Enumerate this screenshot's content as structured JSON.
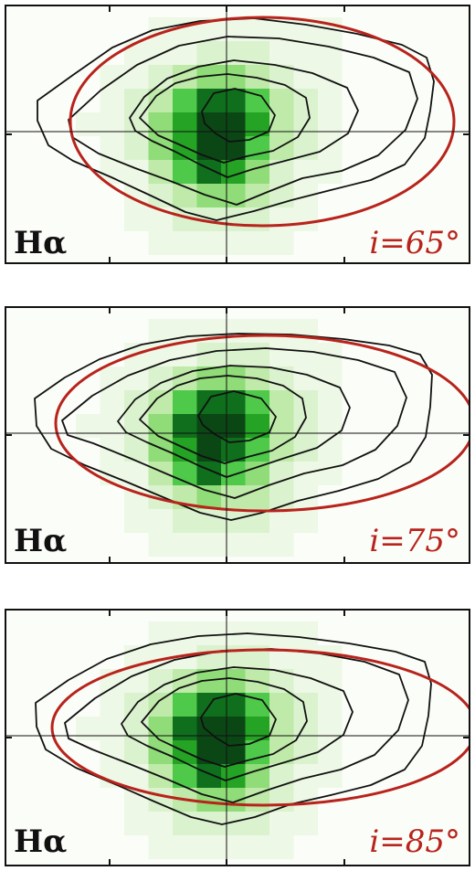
{
  "figure": {
    "panels": [
      {
        "line_label": "Hα",
        "inclination_label": "i=65°",
        "inclination_deg": 65
      },
      {
        "line_label": "Hα",
        "inclination_label": "i=75°",
        "inclination_deg": 75
      },
      {
        "line_label": "Hα",
        "inclination_label": "i=85°",
        "inclination_deg": 85
      }
    ]
  },
  "colors": {
    "model_ellipse": "#b8231c",
    "contour": "#111111",
    "inclination_text": "#b8231c",
    "line_text": "#111111",
    "emission_scale": [
      "#fbfdf8",
      "#eef8e6",
      "#dbf2cf",
      "#bfeaa9",
      "#8fdc78",
      "#4fc94a",
      "#24a324",
      "#0f6f1c",
      "#0a4715"
    ]
  },
  "chart_data": [
    {
      "type": "heatmap",
      "title": "",
      "line": "Hα",
      "annotation": "i=65°",
      "model_inclination_deg": 65,
      "grid": false,
      "crosshair_at_center": true,
      "emission_map_levels_by_row": [
        [
          0,
          0,
          0,
          1,
          1,
          1,
          1,
          1,
          1,
          1,
          1,
          0
        ],
        [
          0,
          0,
          1,
          1,
          1,
          2,
          2,
          2,
          1,
          1,
          1,
          0
        ],
        [
          0,
          1,
          1,
          2,
          3,
          4,
          4,
          3,
          2,
          1,
          1,
          0
        ],
        [
          0,
          1,
          2,
          3,
          5,
          7,
          7,
          5,
          3,
          2,
          1,
          0
        ],
        [
          1,
          1,
          2,
          4,
          6,
          8,
          8,
          6,
          3,
          2,
          1,
          0
        ],
        [
          0,
          1,
          2,
          4,
          6,
          8,
          8,
          5,
          3,
          2,
          1,
          0
        ],
        [
          0,
          1,
          1,
          3,
          5,
          7,
          6,
          4,
          2,
          1,
          1,
          0
        ],
        [
          0,
          0,
          1,
          2,
          3,
          4,
          4,
          3,
          2,
          1,
          0,
          0
        ],
        [
          0,
          0,
          1,
          1,
          2,
          2,
          2,
          2,
          1,
          1,
          0,
          0
        ],
        [
          0,
          0,
          0,
          1,
          1,
          1,
          1,
          1,
          1,
          0,
          0,
          0
        ]
      ]
    },
    {
      "type": "heatmap",
      "title": "",
      "line": "Hα",
      "annotation": "i=75°",
      "model_inclination_deg": 75,
      "grid": false,
      "crosshair_at_center": true,
      "emission_map_levels_by_row": [
        [
          0,
          0,
          0,
          1,
          1,
          1,
          1,
          1,
          1,
          1,
          0,
          0
        ],
        [
          0,
          0,
          1,
          1,
          1,
          2,
          2,
          2,
          1,
          1,
          1,
          0
        ],
        [
          0,
          1,
          1,
          2,
          3,
          4,
          4,
          3,
          2,
          1,
          1,
          0
        ],
        [
          0,
          1,
          2,
          3,
          5,
          7,
          7,
          5,
          3,
          2,
          1,
          0
        ],
        [
          1,
          1,
          2,
          4,
          7,
          8,
          8,
          6,
          3,
          2,
          1,
          0
        ],
        [
          0,
          1,
          2,
          4,
          6,
          8,
          7,
          5,
          3,
          2,
          1,
          0
        ],
        [
          0,
          1,
          1,
          3,
          5,
          7,
          5,
          4,
          2,
          1,
          1,
          0
        ],
        [
          0,
          0,
          1,
          2,
          3,
          4,
          3,
          3,
          2,
          1,
          0,
          0
        ],
        [
          0,
          0,
          1,
          1,
          2,
          2,
          2,
          2,
          1,
          1,
          0,
          0
        ],
        [
          0,
          0,
          0,
          1,
          1,
          1,
          1,
          1,
          1,
          0,
          0,
          0
        ]
      ]
    },
    {
      "type": "heatmap",
      "title": "",
      "line": "Hα",
      "annotation": "i=85°",
      "model_inclination_deg": 85,
      "grid": false,
      "crosshair_at_center": true,
      "emission_map_levels_by_row": [
        [
          0,
          0,
          0,
          1,
          1,
          1,
          1,
          1,
          1,
          1,
          0,
          0
        ],
        [
          0,
          0,
          1,
          1,
          1,
          2,
          2,
          2,
          1,
          1,
          1,
          0
        ],
        [
          0,
          1,
          1,
          2,
          3,
          4,
          4,
          3,
          2,
          1,
          1,
          0
        ],
        [
          0,
          1,
          2,
          3,
          5,
          7,
          7,
          5,
          3,
          2,
          1,
          0
        ],
        [
          1,
          1,
          2,
          4,
          7,
          8,
          8,
          6,
          3,
          2,
          1,
          0
        ],
        [
          0,
          1,
          2,
          4,
          6,
          8,
          8,
          5,
          3,
          2,
          1,
          0
        ],
        [
          0,
          1,
          1,
          3,
          5,
          7,
          6,
          4,
          2,
          1,
          1,
          0
        ],
        [
          0,
          0,
          1,
          2,
          3,
          4,
          4,
          3,
          2,
          1,
          0,
          0
        ],
        [
          0,
          0,
          1,
          1,
          2,
          2,
          2,
          2,
          1,
          1,
          0,
          0
        ],
        [
          0,
          0,
          0,
          1,
          1,
          1,
          1,
          1,
          1,
          0,
          0,
          0
        ]
      ]
    }
  ]
}
